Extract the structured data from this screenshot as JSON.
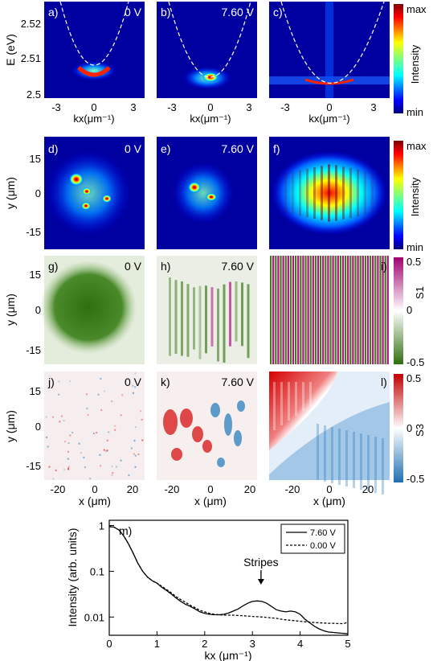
{
  "colors": {
    "jet": [
      "#00007f",
      "#0000ff",
      "#0080ff",
      "#00ffff",
      "#7fff7f",
      "#ffff00",
      "#ff8000",
      "#ff0000",
      "#7f0000"
    ],
    "s1_neg": "#3f7f1f",
    "s1_pos": "#b0107f",
    "s3_neg": "#2a7fbf",
    "s3_pos": "#d71010"
  },
  "panels": {
    "a": {
      "tag": "a)",
      "volt": "0 V"
    },
    "b": {
      "tag": "b)",
      "volt": "7.60 V"
    },
    "c": {
      "tag": "c)",
      "volt": ""
    },
    "d": {
      "tag": "d)",
      "volt": "0 V"
    },
    "e": {
      "tag": "e)",
      "volt": "7.60 V"
    },
    "f": {
      "tag": "f)",
      "volt": ""
    },
    "g": {
      "tag": "g)",
      "volt": "0 V"
    },
    "h": {
      "tag": "h)",
      "volt": "7.60 V"
    },
    "i": {
      "tag": "i)",
      "volt": ""
    },
    "j": {
      "tag": "j)",
      "volt": "0 V"
    },
    "k": {
      "tag": "k)",
      "volt": "7.60 V"
    },
    "l": {
      "tag": "l)",
      "volt": ""
    },
    "m": {
      "tag": "m)"
    }
  },
  "row1": {
    "ylabel": "E (eV)",
    "yticks": [
      "2.52",
      "2.51",
      "2.5"
    ],
    "xticks": [
      "-3",
      "0",
      "3"
    ],
    "xlabel": "kx(μm⁻¹)",
    "cbar_label": "Intensity",
    "cbar_max": "max",
    "cbar_min": "min"
  },
  "row2": {
    "ylabel": "y (μm)",
    "yticks": [
      "15",
      "0",
      "-15"
    ],
    "cbar_label": "Intensity",
    "cbar_max": "max",
    "cbar_min": "min"
  },
  "row3": {
    "ylabel": "y (μm)",
    "yticks": [
      "15",
      "0",
      "-15"
    ],
    "cbar_label": "S1",
    "cbar_ticks": [
      "0.5",
      "0",
      "-0.5"
    ]
  },
  "row4": {
    "ylabel": "y (μm)",
    "yticks": [
      "15",
      "0",
      "-15"
    ],
    "xticks": [
      "-20",
      "0",
      "20"
    ],
    "xlabel": "x (μm)",
    "cbar_label": "S3",
    "cbar_ticks": [
      "0.5",
      "0",
      "-0.5"
    ]
  },
  "chart_data": {
    "type": "line",
    "xlabel": "kx (μm⁻¹)",
    "ylabel": "Intensity (arb. units)",
    "xlim": [
      0,
      5
    ],
    "ylim": [
      0.004,
      1.3
    ],
    "yscale": "log",
    "xticks": [
      "0",
      "1",
      "2",
      "3",
      "4",
      "5"
    ],
    "yticks": [
      "1",
      "0.1",
      "0.01"
    ],
    "legend_position": "top-right",
    "annotation": "Stripes",
    "annotation_x": 3.18,
    "series": [
      {
        "name": "7.60 V",
        "style": "solid",
        "x": [
          0,
          0.1,
          0.2,
          0.3,
          0.4,
          0.5,
          0.6,
          0.7,
          0.8,
          0.9,
          1.0,
          1.1,
          1.2,
          1.3,
          1.4,
          1.5,
          1.6,
          1.7,
          1.8,
          1.9,
          2.0,
          2.1,
          2.2,
          2.3,
          2.4,
          2.5,
          2.6,
          2.7,
          2.8,
          2.9,
          3.0,
          3.1,
          3.2,
          3.3,
          3.4,
          3.5,
          3.6,
          3.7,
          3.8,
          3.9,
          4.0,
          4.1,
          4.2,
          4.3,
          4.4,
          4.5,
          4.6,
          4.7,
          4.8,
          4.9,
          5.0
        ],
        "y": [
          0.95,
          0.92,
          0.8,
          0.6,
          0.4,
          0.25,
          0.15,
          0.1,
          0.075,
          0.062,
          0.055,
          0.045,
          0.038,
          0.032,
          0.026,
          0.022,
          0.019,
          0.017,
          0.015,
          0.013,
          0.012,
          0.0115,
          0.0112,
          0.0112,
          0.0115,
          0.0122,
          0.0135,
          0.015,
          0.0175,
          0.02,
          0.022,
          0.0225,
          0.022,
          0.02,
          0.017,
          0.0145,
          0.0135,
          0.013,
          0.0135,
          0.013,
          0.0115,
          0.009,
          0.0075,
          0.0063,
          0.0055,
          0.005,
          0.0047,
          0.0046,
          0.0045,
          0.0044,
          0.0043
        ]
      },
      {
        "name": "0.00 V",
        "style": "dashed",
        "x": [
          0,
          0.1,
          0.2,
          0.3,
          0.4,
          0.5,
          0.6,
          0.7,
          0.8,
          0.9,
          1.0,
          1.1,
          1.2,
          1.3,
          1.4,
          1.5,
          1.6,
          1.7,
          1.8,
          1.9,
          2.0,
          2.1,
          2.2,
          2.3,
          2.4,
          2.5,
          2.6,
          2.7,
          2.8,
          2.9,
          3.0,
          3.1,
          3.2,
          3.3,
          3.4,
          3.5,
          3.6,
          3.7,
          3.8,
          3.9,
          4.0,
          4.1,
          4.2,
          4.3,
          4.4,
          4.5,
          4.6,
          4.7,
          4.8,
          4.9,
          5.0
        ],
        "y": [
          0.95,
          0.92,
          0.8,
          0.6,
          0.4,
          0.25,
          0.15,
          0.1,
          0.075,
          0.062,
          0.055,
          0.047,
          0.04,
          0.034,
          0.028,
          0.024,
          0.021,
          0.018,
          0.016,
          0.014,
          0.013,
          0.012,
          0.0115,
          0.0112,
          0.011,
          0.011,
          0.011,
          0.0108,
          0.0107,
          0.0105,
          0.0103,
          0.0102,
          0.01,
          0.0098,
          0.0096,
          0.0094,
          0.009,
          0.0087,
          0.0085,
          0.0083,
          0.0081,
          0.0079,
          0.0077,
          0.0076,
          0.0075,
          0.0074,
          0.0073,
          0.0073,
          0.0072,
          0.0072,
          0.0076
        ]
      }
    ]
  }
}
